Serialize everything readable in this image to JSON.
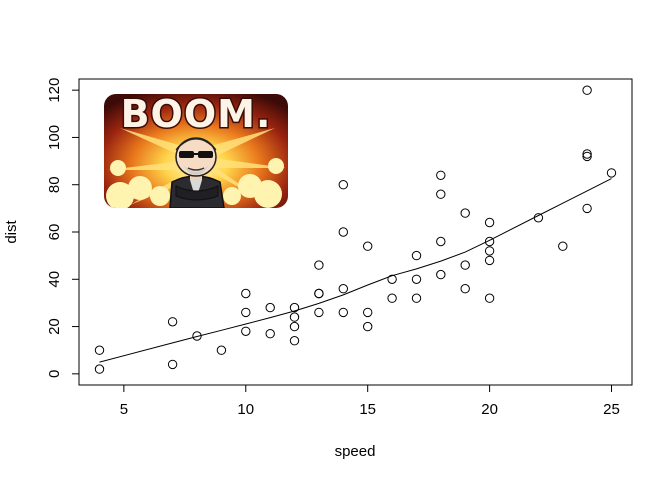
{
  "chart_data": {
    "type": "scatter",
    "title": "",
    "xlabel": "speed",
    "ylabel": "dist",
    "xlim": [
      3.16,
      25.84
    ],
    "ylim": [
      -4.72,
      124.72
    ],
    "xticks": [
      5,
      10,
      15,
      20,
      25
    ],
    "yticks": [
      0,
      20,
      40,
      60,
      80,
      100,
      120
    ],
    "grid": false,
    "legend": "none",
    "marker": "open-circle",
    "points": [
      [
        4,
        2
      ],
      [
        4,
        10
      ],
      [
        7,
        4
      ],
      [
        7,
        22
      ],
      [
        8,
        16
      ],
      [
        9,
        10
      ],
      [
        10,
        18
      ],
      [
        10,
        26
      ],
      [
        10,
        34
      ],
      [
        11,
        17
      ],
      [
        11,
        28
      ],
      [
        12,
        14
      ],
      [
        12,
        20
      ],
      [
        12,
        24
      ],
      [
        12,
        28
      ],
      [
        13,
        26
      ],
      [
        13,
        34
      ],
      [
        13,
        34
      ],
      [
        13,
        46
      ],
      [
        14,
        26
      ],
      [
        14,
        36
      ],
      [
        14,
        60
      ],
      [
        14,
        80
      ],
      [
        15,
        20
      ],
      [
        15,
        26
      ],
      [
        15,
        54
      ],
      [
        16,
        32
      ],
      [
        16,
        40
      ],
      [
        17,
        32
      ],
      [
        17,
        40
      ],
      [
        17,
        50
      ],
      [
        18,
        42
      ],
      [
        18,
        56
      ],
      [
        18,
        76
      ],
      [
        18,
        84
      ],
      [
        19,
        36
      ],
      [
        19,
        46
      ],
      [
        19,
        68
      ],
      [
        20,
        32
      ],
      [
        20,
        48
      ],
      [
        20,
        52
      ],
      [
        20,
        56
      ],
      [
        20,
        64
      ],
      [
        22,
        66
      ],
      [
        23,
        54
      ],
      [
        24,
        70
      ],
      [
        24,
        92
      ],
      [
        24,
        93
      ],
      [
        24,
        120
      ],
      [
        25,
        85
      ]
    ],
    "smooth_line": [
      [
        4,
        4.97
      ],
      [
        7,
        13.1
      ],
      [
        8,
        15.8
      ],
      [
        9,
        18.4
      ],
      [
        10,
        21.1
      ],
      [
        11,
        23.8
      ],
      [
        12,
        26.6
      ],
      [
        13,
        29.8
      ],
      [
        14,
        33.4
      ],
      [
        15,
        37.6
      ],
      [
        16,
        41.5
      ],
      [
        17,
        44.4
      ],
      [
        18,
        47.7
      ],
      [
        19,
        51.5
      ],
      [
        20,
        56.5
      ],
      [
        22,
        67.0
      ],
      [
        23,
        72.2
      ],
      [
        24,
        77.4
      ],
      [
        25,
        82.6
      ]
    ]
  },
  "overlay": {
    "banner_text": "BOOM."
  }
}
